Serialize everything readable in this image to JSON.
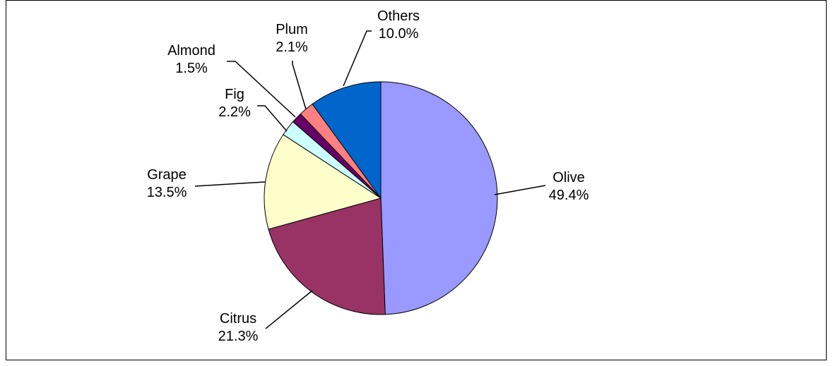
{
  "chart_data": {
    "type": "pie",
    "title": "",
    "start_angle_deg": 0,
    "direction": "clockwise",
    "slices": [
      {
        "name": "Olive",
        "label": "49.4%",
        "value": 49.4,
        "color": "#9999ff"
      },
      {
        "name": "Citrus",
        "label": "21.3%",
        "value": 21.3,
        "color": "#993366"
      },
      {
        "name": "Grape",
        "label": "13.5%",
        "value": 13.5,
        "color": "#ffffcc"
      },
      {
        "name": "Fig",
        "label": "2.2%",
        "value": 2.2,
        "color": "#ccffff"
      },
      {
        "name": "Almond",
        "label": "1.5%",
        "value": 1.5,
        "color": "#660066"
      },
      {
        "name": "Plum",
        "label": "2.1%",
        "value": 2.1,
        "color": "#ff8080"
      },
      {
        "name": "Others",
        "label": "10.0%",
        "value": 10.0,
        "color": "#0066cc"
      }
    ]
  }
}
